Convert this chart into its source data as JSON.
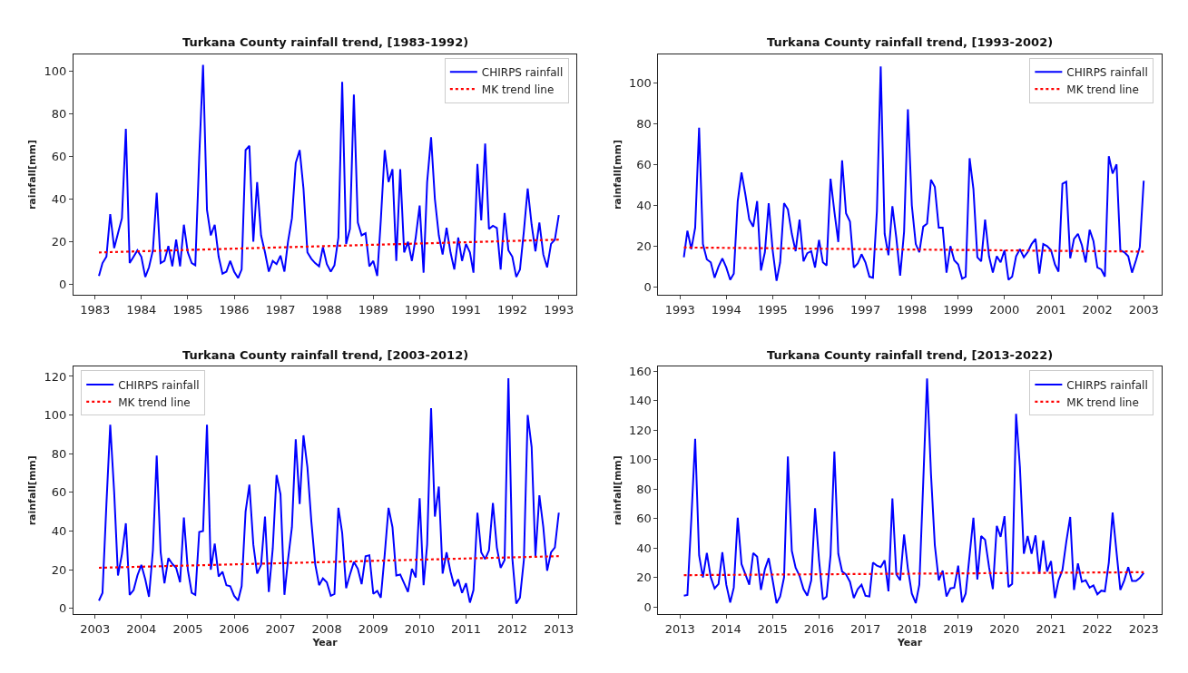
{
  "chart_data": [
    {
      "type": "line",
      "title": "Turkana County rainfall trend, [1983-1992)",
      "ylabel": "rainfall[mm]",
      "legend": "top right",
      "x": [
        "1983-02",
        "1983-03",
        "1983-04",
        "1983-05",
        "1983-06",
        "1983-07",
        "1983-08",
        "1983-09",
        "1983-10",
        "1983-11",
        "1983-12",
        "1984-01",
        "1984-02",
        "1984-03",
        "1984-04",
        "1984-05",
        "1984-06",
        "1984-07",
        "1984-08",
        "1984-09",
        "1984-10",
        "1984-11",
        "1984-12",
        "1985-01",
        "1985-02",
        "1985-03",
        "1985-04",
        "1985-05",
        "1985-06",
        "1985-07",
        "1985-08",
        "1985-09",
        "1985-10",
        "1985-11",
        "1985-12",
        "1986-01",
        "1986-02",
        "1986-03",
        "1986-04",
        "1986-05",
        "1986-06",
        "1986-07",
        "1986-08",
        "1986-09",
        "1986-10",
        "1986-11",
        "1986-12",
        "1987-01",
        "1987-02",
        "1987-03",
        "1987-04",
        "1987-05",
        "1987-06",
        "1987-07",
        "1987-08",
        "1987-09",
        "1987-10",
        "1987-11",
        "1987-12",
        "1988-01",
        "1988-02",
        "1988-03",
        "1988-04",
        "1988-05",
        "1988-06",
        "1988-07",
        "1988-08",
        "1988-09",
        "1988-10",
        "1988-11",
        "1988-12",
        "1989-01",
        "1989-02",
        "1989-03",
        "1989-04",
        "1989-05",
        "1989-06",
        "1989-07",
        "1989-08",
        "1989-09",
        "1989-10",
        "1989-11",
        "1989-12",
        "1990-01",
        "1990-02",
        "1990-03",
        "1990-04",
        "1990-05",
        "1990-06",
        "1990-07",
        "1990-08",
        "1990-09",
        "1990-10",
        "1990-11",
        "1990-12",
        "1991-01",
        "1991-02",
        "1991-03",
        "1991-04",
        "1991-05",
        "1991-06",
        "1991-07",
        "1991-08",
        "1991-09",
        "1991-10",
        "1991-11",
        "1991-12",
        "1992-01",
        "1992-02",
        "1992-03",
        "1992-04",
        "1992-05",
        "1992-06",
        "1992-07",
        "1992-08",
        "1992-09",
        "1992-10",
        "1992-11",
        "1992-12",
        "1993-01"
      ],
      "xlim": [
        "1982-07-15",
        "1993-05-20"
      ],
      "xticks": [
        "1983",
        "1984",
        "1985",
        "1986",
        "1987",
        "1988",
        "1989",
        "1990",
        "1991",
        "1992",
        "1993"
      ],
      "ylim": [
        -5,
        108
      ],
      "yticks": [
        0,
        20,
        40,
        60,
        80,
        100
      ],
      "series": [
        {
          "name": "CHIRPS rainfall",
          "color": "#0000ff",
          "line_style": "solid",
          "values": [
            4,
            10,
            13,
            33,
            17,
            24,
            31,
            73,
            10,
            13,
            16,
            13,
            3.5,
            8,
            16,
            43,
            10,
            11,
            18,
            8.5,
            21,
            8.5,
            28,
            15,
            10,
            9,
            60,
            103,
            35,
            23,
            28,
            13,
            5,
            6,
            11,
            6,
            3,
            7,
            63,
            65,
            20,
            48,
            23,
            15,
            6,
            11,
            9.5,
            13.5,
            6,
            20,
            31,
            57,
            63,
            45,
            15,
            12,
            10,
            8.5,
            17.5,
            9.5,
            6,
            9,
            22,
            95,
            19,
            26,
            89,
            29,
            23,
            24,
            8.5,
            11,
            4,
            30,
            63,
            48,
            54,
            11,
            54,
            15,
            20,
            11,
            22,
            37,
            5.5,
            48,
            69,
            40,
            23,
            14,
            26.5,
            15,
            7,
            22,
            11,
            19,
            15,
            5.5,
            56.5,
            30,
            66,
            26,
            27.5,
            26.5,
            7,
            33.5,
            16,
            13,
            3.5,
            7,
            25,
            45,
            28,
            15.5,
            29,
            14,
            8,
            19,
            21,
            32.5
          ]
        },
        {
          "name": "MK trend line",
          "type": "line",
          "color": "#ff0000",
          "line_style": "dotted",
          "x": [
            "1983-02",
            "1993-01"
          ],
          "values": [
            15,
            21
          ]
        }
      ]
    },
    {
      "type": "line",
      "title": "Turkana County rainfall trend, [1993-2002)",
      "ylabel": "rainfall[mm]",
      "legend": "top right",
      "x": [
        "1993-02",
        "1993-03",
        "1993-04",
        "1993-05",
        "1993-06",
        "1993-07",
        "1993-08",
        "1993-09",
        "1993-10",
        "1993-11",
        "1993-12",
        "1994-01",
        "1994-02",
        "1994-03",
        "1994-04",
        "1994-05",
        "1994-06",
        "1994-07",
        "1994-08",
        "1994-09",
        "1994-10",
        "1994-11",
        "1994-12",
        "1995-01",
        "1995-02",
        "1995-03",
        "1995-04",
        "1995-05",
        "1995-06",
        "1995-07",
        "1995-08",
        "1995-09",
        "1995-10",
        "1995-11",
        "1995-12",
        "1996-01",
        "1996-02",
        "1996-03",
        "1996-04",
        "1996-05",
        "1996-06",
        "1996-07",
        "1996-08",
        "1996-09",
        "1996-10",
        "1996-11",
        "1996-12",
        "1997-01",
        "1997-02",
        "1997-03",
        "1997-04",
        "1997-05",
        "1997-06",
        "1997-07",
        "1997-08",
        "1997-09",
        "1997-10",
        "1997-11",
        "1997-12",
        "1998-01",
        "1998-02",
        "1998-03",
        "1998-04",
        "1998-05",
        "1998-06",
        "1998-07",
        "1998-08",
        "1998-09",
        "1998-10",
        "1998-11",
        "1998-12",
        "1999-01",
        "1999-02",
        "1999-03",
        "1999-04",
        "1999-05",
        "1999-06",
        "1999-07",
        "1999-08",
        "1999-09",
        "1999-10",
        "1999-11",
        "1999-12",
        "2000-01",
        "2000-02",
        "2000-03",
        "2000-04",
        "2000-05",
        "2000-06",
        "2000-07",
        "2000-08",
        "2000-09",
        "2000-10",
        "2000-11",
        "2000-12",
        "2001-01",
        "2001-02",
        "2001-03",
        "2001-04",
        "2001-05",
        "2001-06",
        "2001-07",
        "2001-08",
        "2001-09",
        "2001-10",
        "2001-11",
        "2001-12",
        "2002-01",
        "2002-02",
        "2002-03",
        "2002-04",
        "2002-05",
        "2002-06",
        "2002-07",
        "2002-08",
        "2002-09",
        "2002-10",
        "2002-11",
        "2002-12",
        "2003-01"
      ],
      "xlim": [
        "1992-07-15",
        "2003-05-20"
      ],
      "xticks": [
        "1993",
        "1994",
        "1995",
        "1996",
        "1997",
        "1998",
        "1999",
        "2000",
        "2001",
        "2002",
        "2003"
      ],
      "ylim": [
        -4,
        114
      ],
      "yticks": [
        0,
        20,
        40,
        60,
        80,
        100
      ],
      "series": [
        {
          "name": "CHIRPS rainfall",
          "color": "#0000ff",
          "line_style": "solid",
          "values": [
            14.5,
            27.5,
            18.5,
            29,
            78,
            21,
            13.5,
            12,
            4.5,
            10,
            14,
            9.5,
            3.5,
            6.5,
            42,
            56,
            45,
            33,
            29.5,
            42,
            8,
            17,
            41,
            18,
            3,
            12,
            41,
            38,
            26,
            17.5,
            33,
            12.5,
            16.5,
            17.5,
            9.5,
            23,
            12,
            10.5,
            53,
            37,
            22,
            62,
            36,
            32,
            9.5,
            11.5,
            16,
            12,
            5,
            4.5,
            37,
            108,
            26,
            15.5,
            39.5,
            24,
            5.5,
            27,
            87,
            40,
            21,
            17,
            29.5,
            31,
            52.5,
            49,
            29,
            29,
            7,
            20,
            13,
            11,
            4,
            5,
            63,
            48,
            14.5,
            12.5,
            33,
            15,
            7,
            15,
            12,
            18,
            3.5,
            5,
            15,
            18.5,
            14.5,
            17,
            21,
            23.5,
            6.5,
            21,
            20,
            18,
            11,
            7.5,
            50.5,
            51.5,
            14,
            23.5,
            26,
            20.5,
            12,
            28,
            22.5,
            9.5,
            8.5,
            5,
            64,
            55.5,
            60,
            18,
            17,
            15,
            7,
            13,
            19.5,
            52
          ]
        },
        {
          "name": "MK trend line",
          "type": "line",
          "color": "#ff0000",
          "line_style": "dotted",
          "x": [
            "1993-02",
            "2003-01"
          ],
          "values": [
            19.3,
            17.3
          ]
        }
      ]
    },
    {
      "type": "line",
      "title": "Turkana County rainfall trend, [2003-2012)",
      "xlabel": "Year",
      "ylabel": "rainfall[mm]",
      "legend": "top left",
      "x": [
        "2003-02",
        "2003-03",
        "2003-04",
        "2003-05",
        "2003-06",
        "2003-07",
        "2003-08",
        "2003-09",
        "2003-10",
        "2003-11",
        "2003-12",
        "2004-01",
        "2004-02",
        "2004-03",
        "2004-04",
        "2004-05",
        "2004-06",
        "2004-07",
        "2004-08",
        "2004-09",
        "2004-10",
        "2004-11",
        "2004-12",
        "2005-01",
        "2005-02",
        "2005-03",
        "2005-04",
        "2005-05",
        "2005-06",
        "2005-07",
        "2005-08",
        "2005-09",
        "2005-10",
        "2005-11",
        "2005-12",
        "2006-01",
        "2006-02",
        "2006-03",
        "2006-04",
        "2006-05",
        "2006-06",
        "2006-07",
        "2006-08",
        "2006-09",
        "2006-10",
        "2006-11",
        "2006-12",
        "2007-01",
        "2007-02",
        "2007-03",
        "2007-04",
        "2007-05",
        "2007-06",
        "2007-07",
        "2007-08",
        "2007-09",
        "2007-10",
        "2007-11",
        "2007-12",
        "2008-01",
        "2008-02",
        "2008-03",
        "2008-04",
        "2008-05",
        "2008-06",
        "2008-07",
        "2008-08",
        "2008-09",
        "2008-10",
        "2008-11",
        "2008-12",
        "2009-01",
        "2009-02",
        "2009-03",
        "2009-04",
        "2009-05",
        "2009-06",
        "2009-07",
        "2009-08",
        "2009-09",
        "2009-10",
        "2009-11",
        "2009-12",
        "2010-01",
        "2010-02",
        "2010-03",
        "2010-04",
        "2010-05",
        "2010-06",
        "2010-07",
        "2010-08",
        "2010-09",
        "2010-10",
        "2010-11",
        "2010-12",
        "2011-01",
        "2011-02",
        "2011-03",
        "2011-04",
        "2011-05",
        "2011-06",
        "2011-07",
        "2011-08",
        "2011-09",
        "2011-10",
        "2011-11",
        "2011-12",
        "2012-01",
        "2012-02",
        "2012-03",
        "2012-04",
        "2012-05",
        "2012-06",
        "2012-07",
        "2012-08",
        "2012-09",
        "2012-10",
        "2012-11",
        "2012-12",
        "2013-01"
      ],
      "xlim": [
        "2002-07-15",
        "2013-05-20"
      ],
      "xticks": [
        "2003",
        "2004",
        "2005",
        "2006",
        "2007",
        "2008",
        "2009",
        "2010",
        "2011",
        "2012",
        "2013"
      ],
      "ylim": [
        -3,
        125
      ],
      "yticks": [
        0,
        20,
        40,
        60,
        80,
        100,
        120
      ],
      "series": [
        {
          "name": "CHIRPS rainfall",
          "color": "#0000ff",
          "line_style": "solid",
          "values": [
            4,
            8,
            54,
            95,
            60,
            17,
            28,
            44,
            7,
            9.5,
            17,
            22.5,
            15,
            6,
            30,
            79,
            29,
            13,
            26,
            23,
            21,
            13.5,
            47,
            20,
            8,
            7,
            39.5,
            40,
            95,
            20,
            33.5,
            16.5,
            19,
            12,
            11.5,
            6.5,
            4,
            11.5,
            50,
            64,
            33,
            18,
            22.5,
            47.5,
            8.5,
            31,
            69,
            59,
            7,
            25,
            42,
            87.5,
            54,
            89.5,
            73,
            45,
            23,
            12,
            15.5,
            13.5,
            6.5,
            7.5,
            52,
            39,
            10.5,
            17.5,
            24,
            20.5,
            12.5,
            27,
            27.5,
            7.5,
            9,
            5.5,
            28,
            52,
            42,
            17,
            17.5,
            13,
            8.5,
            20.5,
            16,
            57,
            12,
            33,
            103.5,
            47.5,
            63,
            18,
            29,
            19,
            11.5,
            15,
            8,
            13,
            3,
            9.5,
            49.5,
            29,
            25.5,
            30,
            54.5,
            31.5,
            21,
            25,
            119,
            26,
            2.5,
            5.5,
            25,
            100,
            83.5,
            27,
            58.5,
            42,
            19.5,
            29,
            31.5,
            49.5
          ]
        },
        {
          "name": "MK trend line",
          "type": "line",
          "color": "#ff0000",
          "line_style": "dotted",
          "x": [
            "2003-02",
            "2013-01"
          ],
          "values": [
            21,
            27
          ]
        }
      ]
    },
    {
      "type": "line",
      "title": "Turkana County rainfall trend, [2013-2022)",
      "xlabel": "Year",
      "ylabel": "rainfall[mm]",
      "legend": "top right",
      "x": [
        "2013-02",
        "2013-03",
        "2013-04",
        "2013-05",
        "2013-06",
        "2013-07",
        "2013-08",
        "2013-09",
        "2013-10",
        "2013-11",
        "2013-12",
        "2014-01",
        "2014-02",
        "2014-03",
        "2014-04",
        "2014-05",
        "2014-06",
        "2014-07",
        "2014-08",
        "2014-09",
        "2014-10",
        "2014-11",
        "2014-12",
        "2015-01",
        "2015-02",
        "2015-03",
        "2015-04",
        "2015-05",
        "2015-06",
        "2015-07",
        "2015-08",
        "2015-09",
        "2015-10",
        "2015-11",
        "2015-12",
        "2016-01",
        "2016-02",
        "2016-03",
        "2016-04",
        "2016-05",
        "2016-06",
        "2016-07",
        "2016-08",
        "2016-09",
        "2016-10",
        "2016-11",
        "2016-12",
        "2017-01",
        "2017-02",
        "2017-03",
        "2017-04",
        "2017-05",
        "2017-06",
        "2017-07",
        "2017-08",
        "2017-09",
        "2017-10",
        "2017-11",
        "2017-12",
        "2018-01",
        "2018-02",
        "2018-03",
        "2018-04",
        "2018-05",
        "2018-06",
        "2018-07",
        "2018-08",
        "2018-09",
        "2018-10",
        "2018-11",
        "2018-12",
        "2019-01",
        "2019-02",
        "2019-03",
        "2019-04",
        "2019-05",
        "2019-06",
        "2019-07",
        "2019-08",
        "2019-09",
        "2019-10",
        "2019-11",
        "2019-12",
        "2020-01",
        "2020-02",
        "2020-03",
        "2020-04",
        "2020-05",
        "2020-06",
        "2020-07",
        "2020-08",
        "2020-09",
        "2020-10",
        "2020-11",
        "2020-12",
        "2021-01",
        "2021-02",
        "2021-03",
        "2021-04",
        "2021-05",
        "2021-06",
        "2021-07",
        "2021-08",
        "2021-09",
        "2021-10",
        "2021-11",
        "2021-12",
        "2022-01",
        "2022-02",
        "2022-03",
        "2022-04",
        "2022-05",
        "2022-06",
        "2022-07",
        "2022-08",
        "2022-09",
        "2022-10",
        "2022-11",
        "2022-12",
        "2023-01"
      ],
      "xlim": [
        "2012-07-15",
        "2023-05-20"
      ],
      "xticks": [
        "2013",
        "2014",
        "2015",
        "2016",
        "2017",
        "2018",
        "2019",
        "2020",
        "2021",
        "2022",
        "2023"
      ],
      "ylim": [
        -5,
        163
      ],
      "yticks": [
        0,
        20,
        40,
        60,
        80,
        100,
        120,
        140,
        160
      ],
      "series": [
        {
          "name": "CHIRPS rainfall",
          "color": "#0000ff",
          "line_style": "solid",
          "values": [
            7.5,
            8,
            60,
            114,
            35,
            20,
            36.5,
            20,
            12.5,
            15.5,
            37,
            15,
            3,
            13,
            60.5,
            29,
            22,
            15,
            36.5,
            34,
            11.5,
            25.5,
            33,
            18,
            2.5,
            7,
            20,
            102,
            38,
            26.5,
            21,
            12,
            7.5,
            18,
            67,
            32,
            5,
            7,
            35,
            105.5,
            36,
            24,
            22,
            17,
            6,
            12,
            15,
            7.5,
            7,
            30,
            28,
            27,
            31.5,
            10.5,
            73.5,
            22,
            18,
            49,
            26,
            9,
            2.5,
            15,
            85,
            155,
            90,
            42,
            18,
            24.5,
            7,
            12.5,
            13,
            28,
            3,
            9,
            35,
            60.5,
            18.5,
            48,
            45.5,
            27,
            12,
            55,
            47.5,
            61.5,
            13.5,
            15.5,
            131,
            95,
            36,
            48,
            36,
            48.5,
            22.5,
            45,
            24,
            31,
            6,
            18,
            25,
            44,
            61,
            11.5,
            29.5,
            17,
            18,
            13,
            14.5,
            8.5,
            11,
            10.5,
            30,
            64,
            37,
            11.5,
            18,
            27,
            17.5,
            17.5,
            19.5,
            23
          ]
        },
        {
          "name": "MK trend line",
          "type": "line",
          "color": "#ff0000",
          "line_style": "dotted",
          "x": [
            "2013-02",
            "2023-01"
          ],
          "values": [
            21.5,
            23.5
          ]
        }
      ]
    }
  ]
}
